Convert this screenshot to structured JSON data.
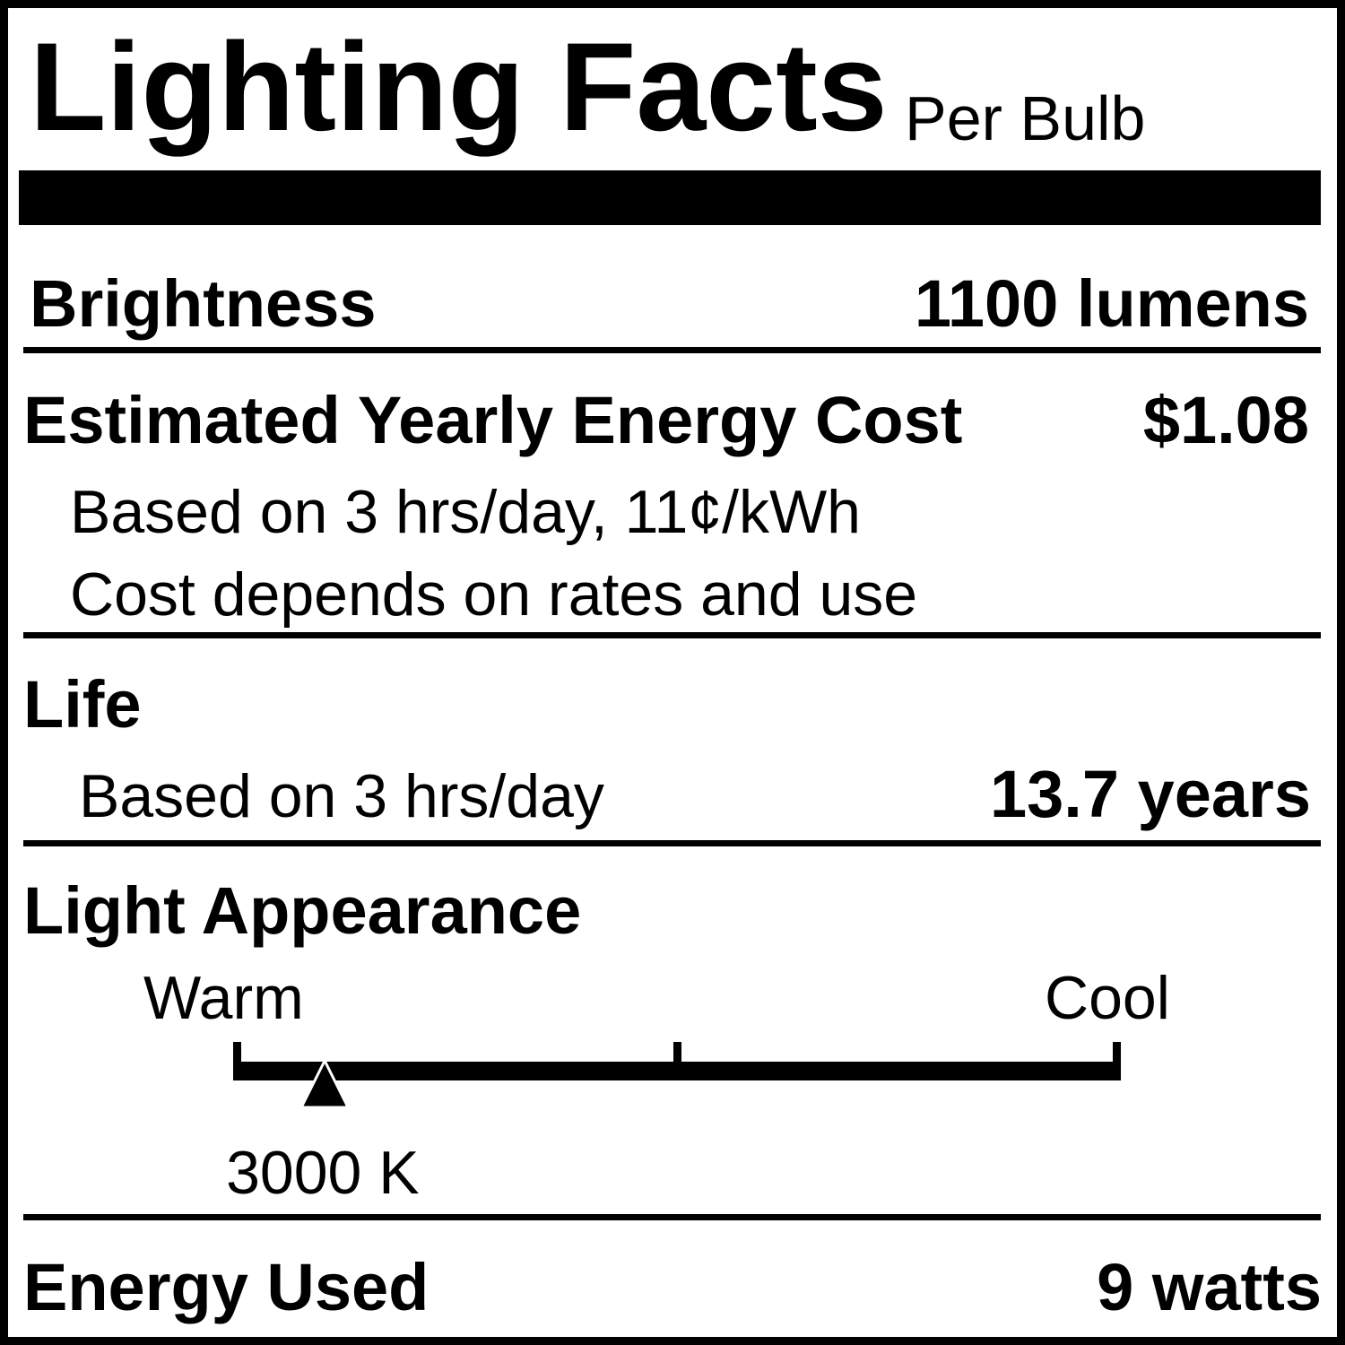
{
  "header": {
    "title": "Lighting Facts",
    "subtitle": "Per Bulb"
  },
  "brightness": {
    "label": "Brightness",
    "value": "1100 lumens"
  },
  "energy_cost": {
    "label": "Estimated Yearly Energy Cost",
    "value": "$1.08",
    "note1": "Based on 3 hrs/day, 11¢/kWh",
    "note2": "Cost depends on rates and use"
  },
  "life": {
    "label": "Life",
    "note": "Based on 3 hrs/day",
    "value": "13.7 years"
  },
  "light_appearance": {
    "label": "Light Appearance",
    "warm_label": "Warm",
    "cool_label": "Cool",
    "value": "3000 K",
    "marker_fraction": 0.1
  },
  "energy_used": {
    "label": "Energy Used",
    "value": "9 watts"
  }
}
